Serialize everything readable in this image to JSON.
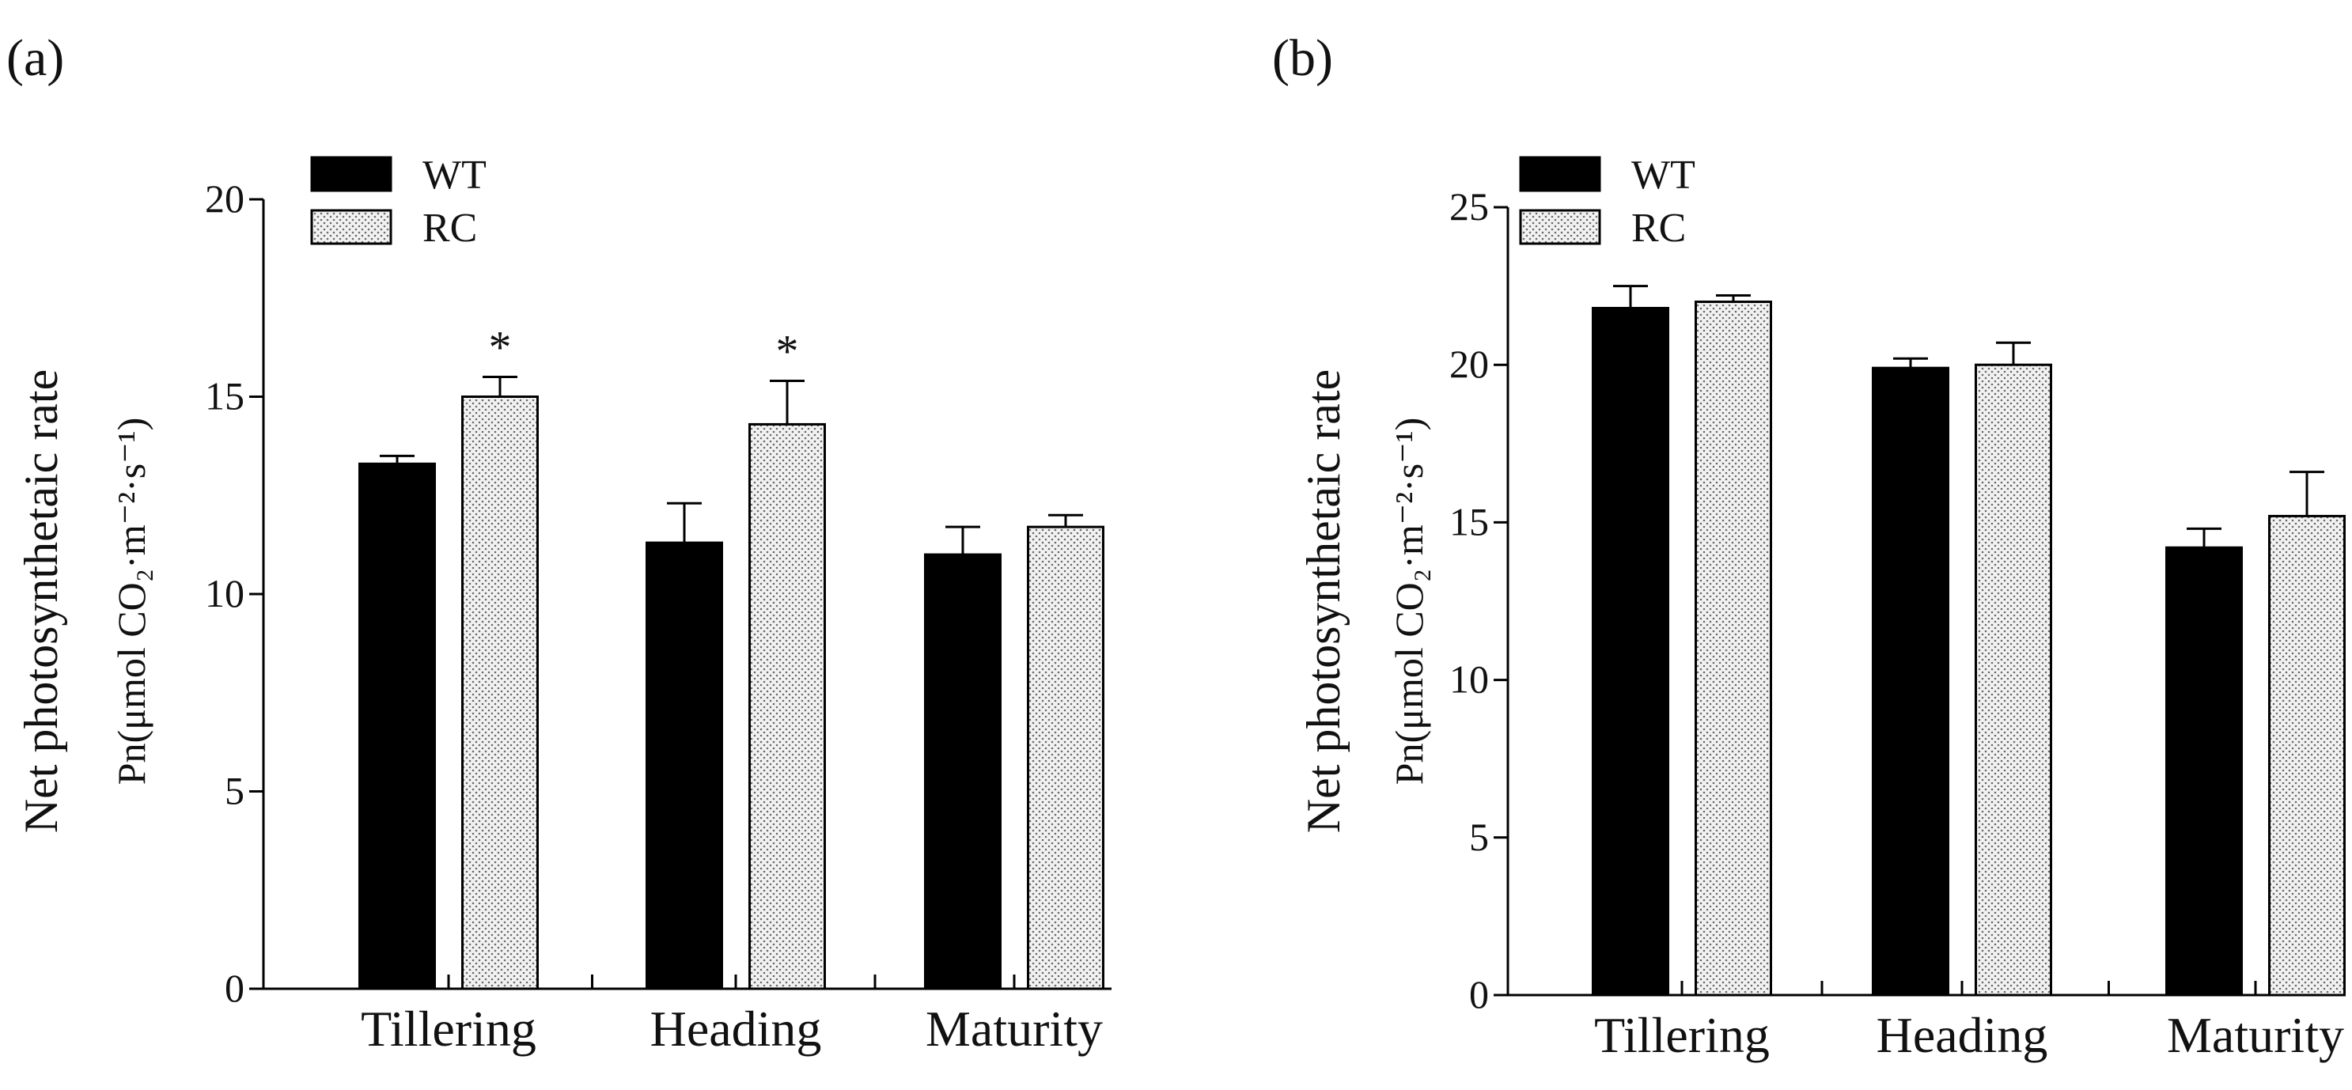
{
  "chart_data": [
    {
      "panel_label": "(a)",
      "type": "bar",
      "categories": [
        "Tillering",
        "Heading",
        "Maturity"
      ],
      "series": [
        {
          "name": "WT",
          "values": [
            13.3,
            11.3,
            11.0
          ],
          "errors": [
            0.2,
            1.0,
            0.7
          ]
        },
        {
          "name": "RC",
          "values": [
            15.0,
            14.3,
            11.7
          ],
          "errors": [
            0.5,
            1.1,
            0.3
          ]
        }
      ],
      "significance": [
        "*",
        "*",
        ""
      ],
      "ylabel_main": "Net photosynthetaic rate",
      "ylabel_sub": "Pn(μmol CO₂·m⁻²·s⁻¹)",
      "ylim": [
        0,
        20
      ],
      "yticks": [
        0,
        5,
        10,
        15,
        20
      ],
      "legend_position": "top-left"
    },
    {
      "panel_label": "(b)",
      "type": "bar",
      "categories": [
        "Tillering",
        "Heading",
        "Maturity"
      ],
      "series": [
        {
          "name": "WT",
          "values": [
            21.8,
            19.9,
            14.2
          ],
          "errors": [
            0.7,
            0.3,
            0.6
          ]
        },
        {
          "name": "RC",
          "values": [
            22.0,
            20.0,
            15.2
          ],
          "errors": [
            0.2,
            0.7,
            1.4
          ]
        }
      ],
      "significance": [
        "",
        "",
        ""
      ],
      "ylabel_main": "Net photosynthetaic rate",
      "ylabel_sub": "Pn(μmol CO₂·m⁻²·s⁻¹)",
      "ylim": [
        0,
        25
      ],
      "yticks": [
        0,
        5,
        10,
        15,
        20,
        25
      ],
      "legend_position": "top-left"
    }
  ],
  "colors": {
    "wt_fill": "#000000",
    "rc_fill": "#f2f2f2",
    "rc_dot": "#6a6a6a",
    "axis": "#000000"
  }
}
